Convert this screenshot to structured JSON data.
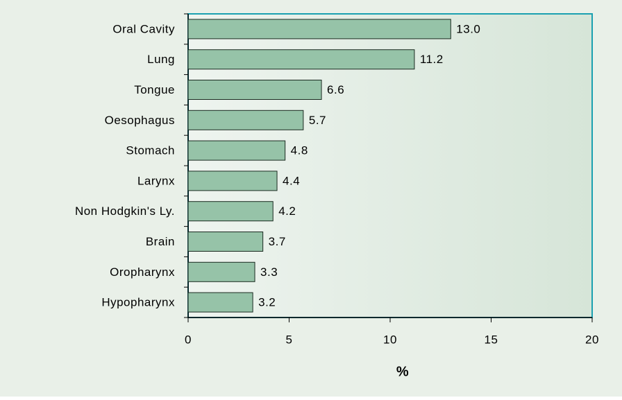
{
  "chart_data": {
    "type": "bar",
    "orientation": "horizontal",
    "categories": [
      "Oral Cavity",
      "Lung",
      "Tongue",
      "Oesophagus",
      "Stomach",
      "Larynx",
      "Non Hodgkin's Ly.",
      "Brain",
      "Oropharynx",
      "Hypopharynx"
    ],
    "values": [
      13.0,
      11.2,
      6.6,
      5.7,
      4.8,
      4.4,
      4.2,
      3.7,
      3.3,
      3.2
    ],
    "value_labels": [
      "13.0",
      "11.2",
      "6.6",
      "5.7",
      "4.8",
      "4.4",
      "4.2",
      "3.7",
      "3.3",
      "3.2"
    ],
    "color": "#96c3a8",
    "xlabel": "%",
    "xlim": [
      0,
      20
    ],
    "xticks": [
      0,
      5,
      10,
      15,
      20
    ],
    "grid": false
  }
}
